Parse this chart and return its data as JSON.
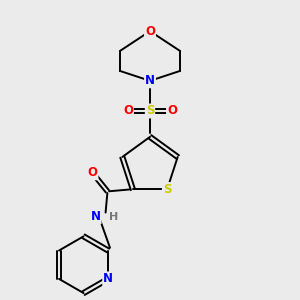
{
  "background_color": "#ebebeb",
  "atom_colors": {
    "C": "#000000",
    "N": "#0000ff",
    "O": "#ff0000",
    "S": "#cccc00",
    "H": "#777777"
  },
  "figsize": [
    3.0,
    3.0
  ],
  "dpi": 100,
  "lw": 1.4,
  "fontsize": 8.5
}
